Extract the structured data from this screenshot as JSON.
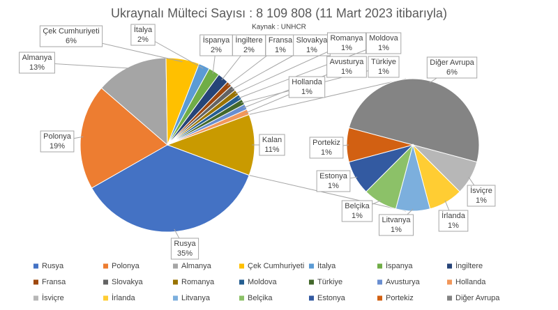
{
  "chart_data": {
    "type": "pie-of-pie",
    "title": "Ukraynalı Mülteci Sayısı : 8 109 808 (11 Mart 2023 itibarıyla)",
    "subtitle": "Kaynak : UNHCR",
    "series": [
      {
        "name": "main",
        "categories": [
          "Rusya",
          "Polonya",
          "Almanya",
          "Çek Cumhuriyeti",
          "İtalya",
          "İspanya",
          "İngiltere",
          "Fransa",
          "Slovakya",
          "Romanya",
          "Moldova",
          "Türkiye",
          "Avusturya",
          "Hollanda"
        ],
        "values": [
          35,
          19,
          13,
          6,
          2,
          2,
          2,
          1,
          1,
          1,
          1,
          1,
          1,
          1
        ],
        "value_labels": [
          "35%",
          "19%",
          "13%",
          "6%",
          "2%",
          "2%",
          "2%",
          "1%",
          "1%",
          "1%",
          "1%",
          "1%",
          "1%",
          "1%"
        ],
        "colors": [
          "#4472c4",
          "#ed7d31",
          "#a5a5a5",
          "#ffc000",
          "#5b9bd5",
          "#70ad47",
          "#264478",
          "#9e480e",
          "#636363",
          "#997300",
          "#255e91",
          "#43682b",
          "#698ed0",
          "#f1975a"
        ]
      },
      {
        "name": "secondary",
        "categories": [
          "Diğer Avrupa",
          "İsviçre",
          "İrlanda",
          "Litvanya",
          "Belçika",
          "Estonya",
          "Portekiz"
        ],
        "values": [
          6,
          1,
          1,
          1,
          1,
          1,
          1
        ],
        "value_labels": [
          "6%",
          "1%",
          "1%",
          "1%",
          "1%",
          "1%",
          "1%"
        ],
        "colors": [
          "#848484",
          "#b7b7b7",
          "#ffcd33",
          "#7cafdd",
          "#8cc168",
          "#335aa1",
          "#d26012"
        ]
      }
    ],
    "remainder": {
      "name": "Kalan",
      "value": 11,
      "value_label": "11%",
      "color": "#c99a00"
    },
    "legend_order": [
      [
        0,
        0
      ],
      [
        0,
        1
      ],
      [
        0,
        2
      ],
      [
        0,
        3
      ],
      [
        0,
        4
      ],
      [
        0,
        5
      ],
      [
        0,
        6
      ],
      [
        0,
        7
      ],
      [
        0,
        8
      ],
      [
        0,
        9
      ],
      [
        0,
        10
      ],
      [
        0,
        11
      ],
      [
        0,
        12
      ],
      [
        0,
        13
      ],
      [
        1,
        1
      ],
      [
        1,
        2
      ],
      [
        1,
        3
      ],
      [
        1,
        4
      ],
      [
        1,
        5
      ],
      [
        1,
        6
      ],
      [
        1,
        0
      ]
    ]
  }
}
